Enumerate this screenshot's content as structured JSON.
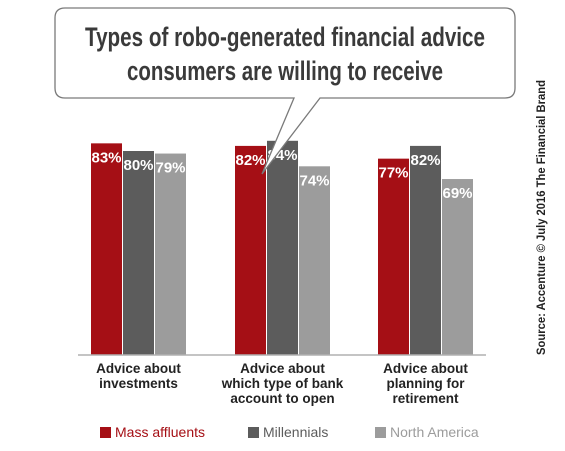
{
  "chart_data": {
    "type": "bar",
    "title_lines": [
      "Types of robo-generated financial advice",
      "consumers are willing to receive"
    ],
    "categories": [
      [
        "Advice about",
        "investments"
      ],
      [
        "Advice about",
        "which type of bank",
        "account to open"
      ],
      [
        "Advice about",
        "planning for",
        "retirement"
      ]
    ],
    "series": [
      {
        "name": "Mass affluents",
        "color": "#a50f15",
        "values": [
          83,
          82,
          77
        ],
        "labels": [
          "83%",
          "82%",
          "77%"
        ]
      },
      {
        "name": "Millennials",
        "color": "#5c5c5c",
        "values": [
          80,
          84,
          82
        ],
        "labels": [
          "80%",
          "84%",
          "82%"
        ]
      },
      {
        "name": "North America",
        "color": "#9c9c9c",
        "values": [
          79,
          74,
          69
        ],
        "labels": [
          "79%",
          "74%",
          "69%"
        ]
      }
    ],
    "ylim": [
      0,
      100
    ],
    "legend_position": "bottom",
    "grid": false,
    "source": "Source: Accenture © July 2016 The Financial Brand"
  }
}
